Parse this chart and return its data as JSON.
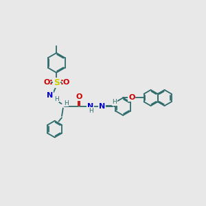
{
  "bg_color": "#e8e8e8",
  "bond_color": "#2d6b6b",
  "bond_width": 1.3,
  "S_color": "#cccc00",
  "O_color": "#cc0000",
  "N_color": "#0000cc",
  "fs": 6.5,
  "xlim": [
    0,
    10
  ],
  "ylim": [
    0,
    10
  ]
}
